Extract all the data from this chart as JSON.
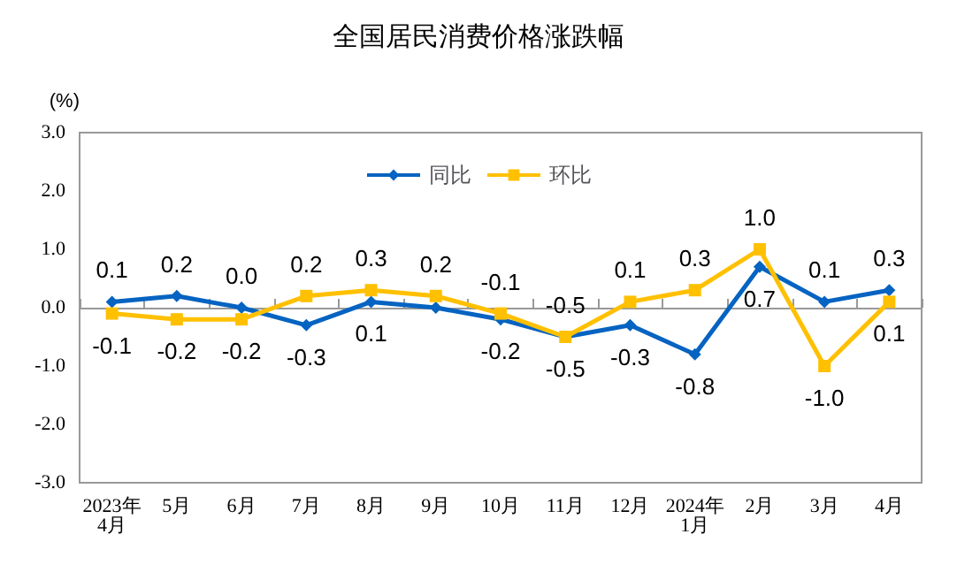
{
  "chart_data": {
    "type": "line",
    "title": "全国居民消费价格涨跌幅",
    "ylabel": "(%)",
    "categories": [
      "2023年\n4月",
      "5月",
      "6月",
      "7月",
      "8月",
      "9月",
      "10月",
      "11月",
      "12月",
      "2024年\n1月",
      "2月",
      "3月",
      "4月"
    ],
    "series": [
      {
        "name": "同比",
        "color": "#0563c1",
        "marker": "diamond",
        "values": [
          0.1,
          0.2,
          0.0,
          -0.3,
          0.1,
          0.0,
          -0.2,
          -0.5,
          -0.3,
          -0.8,
          0.7,
          0.1,
          0.3
        ],
        "value_labels": [
          "0.1",
          "0.2",
          "0.0",
          "-0.3",
          "0.1",
          null,
          "-0.2",
          "-0.5",
          "-0.3",
          "-0.8",
          "0.7",
          "0.1",
          "0.3"
        ]
      },
      {
        "name": "环比",
        "color": "#ffc000",
        "marker": "square",
        "values": [
          -0.1,
          -0.2,
          -0.2,
          0.2,
          0.3,
          0.2,
          -0.1,
          -0.5,
          0.1,
          0.3,
          1.0,
          -1.0,
          0.1
        ],
        "value_labels": [
          "-0.1",
          "-0.2",
          "-0.2",
          "0.2",
          "0.3",
          "0.2",
          "-0.1",
          "-0.5",
          "0.1",
          "0.3",
          "1.0",
          "-1.0",
          "0.1"
        ]
      }
    ],
    "ylim": [
      -3,
      3
    ],
    "yticks": [
      {
        "value": -3,
        "label": "-3.0"
      },
      {
        "value": -2,
        "label": "-2.0"
      },
      {
        "value": -1,
        "label": "-1.0"
      },
      {
        "value": 0,
        "label": "0.0"
      },
      {
        "value": 1,
        "label": "1.0"
      },
      {
        "value": 2,
        "label": "2.0"
      },
      {
        "value": 3,
        "label": "3.0"
      }
    ],
    "legend": "top",
    "line_style": "solid"
  }
}
